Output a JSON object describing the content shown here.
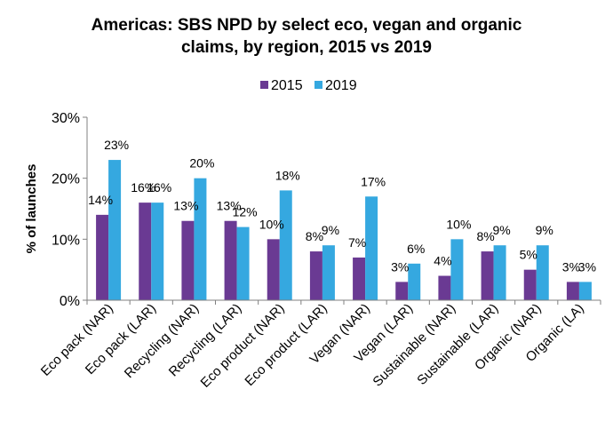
{
  "chart_data": {
    "type": "bar",
    "title_lines": [
      "Americas: SBS NPD by select eco, vegan and organic",
      "claims, by region, 2015 vs 2019"
    ],
    "ylabel": "% of launches",
    "xlabel": "",
    "ylim": [
      0,
      30
    ],
    "yticks": [
      0,
      10,
      20,
      30
    ],
    "ytick_labels": [
      "0%",
      "10%",
      "20%",
      "30%"
    ],
    "grid": false,
    "legend_position": "top",
    "categories": [
      "Eco pack (NAR)",
      "Eco pack (LAR)",
      "Recycling (NAR)",
      "Recycling (LAR)",
      "Eco product (NAR)",
      "Eco product (LAR)",
      "Vegan (NAR)",
      "Vegan (LAR)",
      "Sustainable (NAR)",
      "Sustainable (LAR)",
      "Organic (NAR)",
      "Organic (LA)"
    ],
    "series": [
      {
        "name": "2015",
        "color": "#6a3a93",
        "values": [
          14,
          16,
          13,
          13,
          10,
          8,
          7,
          3,
          4,
          8,
          5,
          3
        ],
        "labels": [
          "14%",
          "16%",
          "13%",
          "13%",
          "10%",
          "8%",
          "7%",
          "3%",
          "4%",
          "8%",
          "5%",
          "3%"
        ]
      },
      {
        "name": "2019",
        "color": "#35a8e0",
        "values": [
          23,
          16,
          20,
          12,
          18,
          9,
          17,
          6,
          10,
          9,
          9,
          3
        ],
        "labels": [
          "23%",
          "16%",
          "20%",
          "12%",
          "18%",
          "9%",
          "17%",
          "6%",
          "10%",
          "9%",
          "9%",
          "3%"
        ]
      }
    ]
  }
}
